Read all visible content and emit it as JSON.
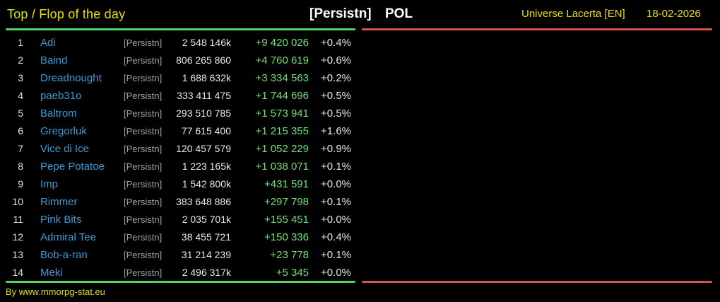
{
  "header": {
    "title": "Top / Flop of the day",
    "alliance_tag": "[Persistn]",
    "country": "POL",
    "universe": "Universe Lacerta [EN]",
    "date": "18-02-2026"
  },
  "table": {
    "rows": [
      {
        "rank": "1",
        "name": "Adi",
        "tag": "[Persistn]",
        "value": "2 548 146k",
        "delta": "+9 420 026",
        "pct": "+0.4%"
      },
      {
        "rank": "2",
        "name": "Baind",
        "tag": "[Persistn]",
        "value": "806 265 860",
        "delta": "+4 760 619",
        "pct": "+0.6%"
      },
      {
        "rank": "3",
        "name": "Dreadnought",
        "tag": "[Persistn]",
        "value": "1 688 632k",
        "delta": "+3 334 563",
        "pct": "+0.2%"
      },
      {
        "rank": "4",
        "name": "paeb31o",
        "tag": "[Persistn]",
        "value": "333 411 475",
        "delta": "+1 744 696",
        "pct": "+0.5%"
      },
      {
        "rank": "5",
        "name": "Baltrom",
        "tag": "[Persistn]",
        "value": "293 510 785",
        "delta": "+1 573 941",
        "pct": "+0.5%"
      },
      {
        "rank": "6",
        "name": "Gregorluk",
        "tag": "[Persistn]",
        "value": "77 615 400",
        "delta": "+1 215 355",
        "pct": "+1.6%"
      },
      {
        "rank": "7",
        "name": "Vice di Ice",
        "tag": "[Persistn]",
        "value": "120 457 579",
        "delta": "+1 052 229",
        "pct": "+0.9%"
      },
      {
        "rank": "8",
        "name": "Pepe Potatoe",
        "tag": "[Persistn]",
        "value": "1 223 165k",
        "delta": "+1 038 071",
        "pct": "+0.1%"
      },
      {
        "rank": "9",
        "name": "Imp",
        "tag": "[Persistn]",
        "value": "1 542 800k",
        "delta": "+431 591",
        "pct": "+0.0%"
      },
      {
        "rank": "10",
        "name": "Rimmer",
        "tag": "[Persistn]",
        "value": "383 648 886",
        "delta": "+297 798",
        "pct": "+0.1%"
      },
      {
        "rank": "11",
        "name": "Pink Bits",
        "tag": "[Persistn]",
        "value": "2 035 701k",
        "delta": "+155 451",
        "pct": "+0.0%"
      },
      {
        "rank": "12",
        "name": "Admiral Tee",
        "tag": "[Persistn]",
        "value": "38 455 721",
        "delta": "+150 336",
        "pct": "+0.4%"
      },
      {
        "rank": "13",
        "name": "Bob-a-ran",
        "tag": "[Persistn]",
        "value": "31 214 239",
        "delta": "+23 778",
        "pct": "+0.1%"
      },
      {
        "rank": "14",
        "name": "Meki",
        "tag": "[Persistn]",
        "value": "2 496 317k",
        "delta": "+5 345",
        "pct": "+0.0%"
      }
    ]
  },
  "footer": {
    "credit": "By www.mmorpg-stat.eu"
  },
  "colors": {
    "background": "#000000",
    "accent_yellow": "#e1e100",
    "header_white": "#ffffff",
    "name_blue": "#3b9ad2",
    "tag_gray": "#97a5b0",
    "value_white": "#e8e8e8",
    "positive_green": "#76dc76",
    "divider_green": "#55d166",
    "divider_red": "#d25750"
  }
}
